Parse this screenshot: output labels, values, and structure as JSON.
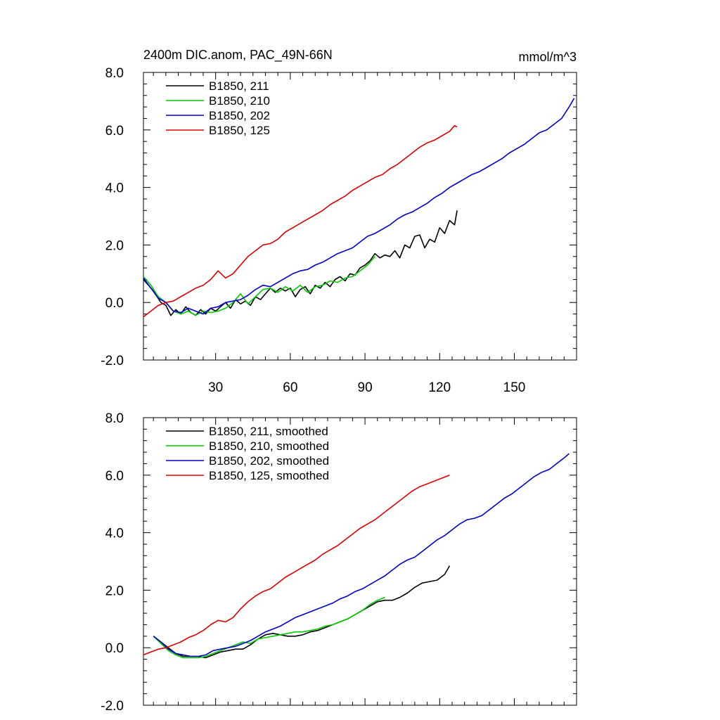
{
  "chart_data": [
    {
      "type": "line",
      "title": "2400m DIC.anom, PAC_49N-66N",
      "units": "mmol/m^3",
      "xlim": [
        1,
        175
      ],
      "ylim": [
        -2,
        8
      ],
      "xticks": [
        30,
        60,
        90,
        120,
        150
      ],
      "xtick_labels": [
        "30",
        "60",
        "90",
        "120",
        "150"
      ],
      "yticks": [
        -2,
        0,
        2,
        4,
        6,
        8
      ],
      "ytick_labels": [
        "-2.0",
        "0.0",
        "2.0",
        "4.0",
        "6.0",
        "8.0"
      ],
      "legend_position": "top-left",
      "series": [
        {
          "name": "B1850, 211",
          "color": "#000000",
          "x": [
            1,
            5,
            8,
            10,
            12,
            14,
            16,
            18,
            20,
            22,
            24,
            26,
            28,
            30,
            32,
            34,
            36,
            38,
            40,
            42,
            44,
            46,
            48,
            50,
            52,
            54,
            56,
            58,
            60,
            62,
            64,
            66,
            68,
            70,
            72,
            74,
            76,
            78,
            80,
            82,
            84,
            86,
            88,
            90,
            92,
            94,
            96,
            98,
            100,
            102,
            104,
            106,
            108,
            110,
            112,
            114,
            116,
            118,
            120,
            122,
            124,
            126,
            127
          ],
          "y": [
            0.8,
            0.4,
            0.0,
            -0.1,
            -0.45,
            -0.25,
            -0.4,
            -0.15,
            -0.35,
            -0.45,
            -0.25,
            -0.4,
            -0.2,
            -0.3,
            -0.15,
            0.0,
            -0.2,
            0.1,
            -0.05,
            0.05,
            -0.1,
            0.2,
            0.1,
            0.3,
            0.5,
            0.35,
            0.5,
            0.4,
            0.5,
            0.2,
            0.45,
            0.55,
            0.3,
            0.6,
            0.5,
            0.7,
            0.55,
            0.8,
            0.9,
            0.75,
            1.0,
            0.95,
            1.2,
            1.3,
            1.45,
            1.7,
            1.55,
            1.65,
            1.6,
            1.8,
            1.55,
            2.0,
            1.9,
            2.3,
            2.35,
            1.9,
            2.2,
            2.1,
            2.6,
            2.4,
            2.85,
            2.7,
            3.2
          ]
        },
        {
          "name": "B1850, 210",
          "color": "#00cc00",
          "x": [
            1,
            4,
            7,
            10,
            13,
            16,
            19,
            22,
            25,
            28,
            31,
            34,
            37,
            40,
            43,
            46,
            49,
            52,
            55,
            58,
            61,
            64,
            67,
            70,
            73,
            76,
            79,
            82,
            85,
            88,
            91,
            94
          ],
          "y": [
            0.9,
            0.6,
            0.2,
            0.0,
            -0.3,
            -0.4,
            -0.3,
            -0.45,
            -0.3,
            -0.35,
            -0.3,
            -0.2,
            0.0,
            0.3,
            -0.05,
            0.2,
            0.45,
            0.5,
            0.35,
            0.55,
            0.4,
            0.6,
            0.35,
            0.55,
            0.6,
            0.75,
            0.7,
            0.85,
            0.9,
            1.1,
            1.3,
            1.6
          ]
        },
        {
          "name": "B1850, 202",
          "color": "#0000cc",
          "x": [
            1,
            4,
            7,
            10,
            13,
            16,
            19,
            22,
            25,
            28,
            31,
            34,
            37,
            40,
            43,
            46,
            49,
            52,
            55,
            58,
            61,
            64,
            67,
            70,
            73,
            76,
            79,
            82,
            85,
            88,
            91,
            94,
            97,
            100,
            103,
            106,
            109,
            112,
            115,
            118,
            121,
            124,
            127,
            130,
            133,
            136,
            139,
            142,
            145,
            148,
            151,
            154,
            157,
            160,
            163,
            166,
            169,
            172,
            174
          ],
          "y": [
            0.85,
            0.5,
            0.15,
            0.0,
            -0.3,
            -0.35,
            -0.2,
            -0.3,
            -0.4,
            -0.2,
            -0.15,
            0.0,
            0.05,
            0.1,
            0.25,
            0.45,
            0.6,
            0.55,
            0.7,
            0.85,
            1.0,
            1.1,
            1.15,
            1.3,
            1.4,
            1.55,
            1.7,
            1.8,
            1.9,
            2.1,
            2.3,
            2.4,
            2.55,
            2.7,
            2.9,
            3.05,
            3.15,
            3.3,
            3.45,
            3.65,
            3.8,
            4.0,
            4.15,
            4.3,
            4.45,
            4.55,
            4.7,
            4.85,
            5.0,
            5.2,
            5.35,
            5.5,
            5.7,
            5.9,
            6.0,
            6.2,
            6.4,
            6.8,
            7.1
          ]
        },
        {
          "name": "B1850, 125",
          "color": "#dd0000",
          "x": [
            1,
            4,
            7,
            10,
            13,
            16,
            19,
            22,
            25,
            28,
            31,
            34,
            37,
            40,
            43,
            46,
            49,
            52,
            55,
            58,
            61,
            64,
            67,
            70,
            73,
            76,
            79,
            82,
            85,
            88,
            91,
            94,
            97,
            100,
            103,
            106,
            109,
            112,
            115,
            118,
            121,
            124,
            126,
            127
          ],
          "y": [
            -0.5,
            -0.3,
            -0.1,
            0.0,
            0.05,
            0.2,
            0.35,
            0.5,
            0.6,
            0.8,
            1.1,
            0.85,
            1.0,
            1.3,
            1.6,
            1.8,
            2.0,
            2.05,
            2.2,
            2.45,
            2.6,
            2.75,
            2.9,
            3.05,
            3.2,
            3.4,
            3.55,
            3.7,
            3.9,
            4.05,
            4.2,
            4.35,
            4.45,
            4.65,
            4.8,
            5.0,
            5.2,
            5.4,
            5.55,
            5.65,
            5.8,
            5.95,
            6.15,
            6.1
          ]
        }
      ]
    },
    {
      "type": "line",
      "title": "",
      "xlim": [
        1,
        175
      ],
      "ylim": [
        -2,
        8
      ],
      "xticks": [
        30,
        60,
        90,
        120,
        150
      ],
      "xtick_labels": [],
      "yticks": [
        -2,
        0,
        2,
        4,
        6,
        8
      ],
      "ytick_labels": [
        "-2.0",
        "0.0",
        "2.0",
        "4.0",
        "6.0",
        "8.0"
      ],
      "legend_position": "top-left",
      "series": [
        {
          "name": "B1850, 211, smoothed",
          "color": "#000000",
          "x": [
            5,
            8,
            11,
            14,
            17,
            20,
            23,
            26,
            29,
            32,
            35,
            38,
            41,
            44,
            47,
            50,
            53,
            56,
            59,
            62,
            65,
            68,
            71,
            74,
            77,
            80,
            83,
            86,
            89,
            92,
            95,
            98,
            101,
            104,
            107,
            110,
            113,
            116,
            119,
            122,
            124
          ],
          "y": [
            0.4,
            0.2,
            0.0,
            -0.2,
            -0.3,
            -0.3,
            -0.3,
            -0.35,
            -0.25,
            -0.15,
            -0.1,
            -0.05,
            -0.05,
            0.1,
            0.3,
            0.45,
            0.5,
            0.45,
            0.4,
            0.4,
            0.45,
            0.55,
            0.6,
            0.7,
            0.8,
            0.9,
            1.0,
            1.15,
            1.3,
            1.45,
            1.6,
            1.65,
            1.65,
            1.75,
            1.9,
            2.1,
            2.25,
            2.3,
            2.35,
            2.55,
            2.85
          ]
        },
        {
          "name": "B1850, 210, smoothed",
          "color": "#00cc00",
          "x": [
            5,
            8,
            11,
            14,
            17,
            20,
            23,
            26,
            29,
            32,
            35,
            38,
            41,
            44,
            47,
            50,
            53,
            56,
            59,
            62,
            65,
            68,
            71,
            74,
            77,
            80,
            83,
            86,
            89,
            92,
            95,
            98
          ],
          "y": [
            0.4,
            0.15,
            -0.1,
            -0.25,
            -0.35,
            -0.35,
            -0.35,
            -0.3,
            -0.2,
            -0.1,
            0.0,
            0.1,
            0.2,
            0.15,
            0.3,
            0.35,
            0.4,
            0.45,
            0.5,
            0.55,
            0.55,
            0.6,
            0.65,
            0.75,
            0.8,
            0.9,
            1.0,
            1.15,
            1.3,
            1.5,
            1.65,
            1.75
          ]
        },
        {
          "name": "B1850, 202, smoothed",
          "color": "#0000cc",
          "x": [
            5,
            8,
            11,
            14,
            17,
            20,
            23,
            26,
            29,
            32,
            35,
            38,
            41,
            44,
            47,
            50,
            53,
            56,
            59,
            62,
            65,
            68,
            71,
            74,
            77,
            80,
            83,
            86,
            89,
            92,
            95,
            98,
            101,
            104,
            107,
            110,
            113,
            116,
            119,
            122,
            125,
            128,
            131,
            134,
            137,
            140,
            143,
            146,
            149,
            152,
            155,
            158,
            161,
            164,
            167,
            170,
            172
          ],
          "y": [
            0.4,
            0.2,
            -0.05,
            -0.2,
            -0.25,
            -0.3,
            -0.3,
            -0.25,
            -0.1,
            -0.05,
            0.0,
            0.05,
            0.15,
            0.25,
            0.4,
            0.55,
            0.65,
            0.75,
            0.9,
            1.05,
            1.15,
            1.25,
            1.35,
            1.45,
            1.55,
            1.7,
            1.8,
            1.95,
            2.05,
            2.2,
            2.35,
            2.5,
            2.7,
            2.9,
            3.05,
            3.15,
            3.35,
            3.55,
            3.75,
            3.9,
            4.1,
            4.3,
            4.45,
            4.5,
            4.6,
            4.8,
            5.0,
            5.2,
            5.35,
            5.55,
            5.75,
            5.95,
            6.1,
            6.2,
            6.4,
            6.6,
            6.75
          ]
        },
        {
          "name": "B1850, 125, smoothed",
          "color": "#dd0000",
          "x": [
            1,
            4,
            7,
            10,
            13,
            16,
            19,
            22,
            25,
            28,
            31,
            34,
            37,
            40,
            43,
            46,
            49,
            52,
            55,
            58,
            61,
            64,
            67,
            70,
            73,
            76,
            79,
            82,
            85,
            88,
            91,
            94,
            97,
            100,
            103,
            106,
            109,
            112,
            115,
            118,
            121,
            124
          ],
          "y": [
            -0.25,
            -0.15,
            -0.05,
            0.0,
            0.1,
            0.2,
            0.35,
            0.45,
            0.6,
            0.8,
            0.95,
            0.9,
            1.05,
            1.35,
            1.6,
            1.8,
            1.95,
            2.05,
            2.25,
            2.45,
            2.6,
            2.75,
            2.9,
            3.05,
            3.25,
            3.4,
            3.55,
            3.75,
            3.95,
            4.15,
            4.3,
            4.45,
            4.65,
            4.85,
            5.05,
            5.25,
            5.45,
            5.6,
            5.7,
            5.8,
            5.9,
            6.0
          ]
        }
      ]
    }
  ]
}
